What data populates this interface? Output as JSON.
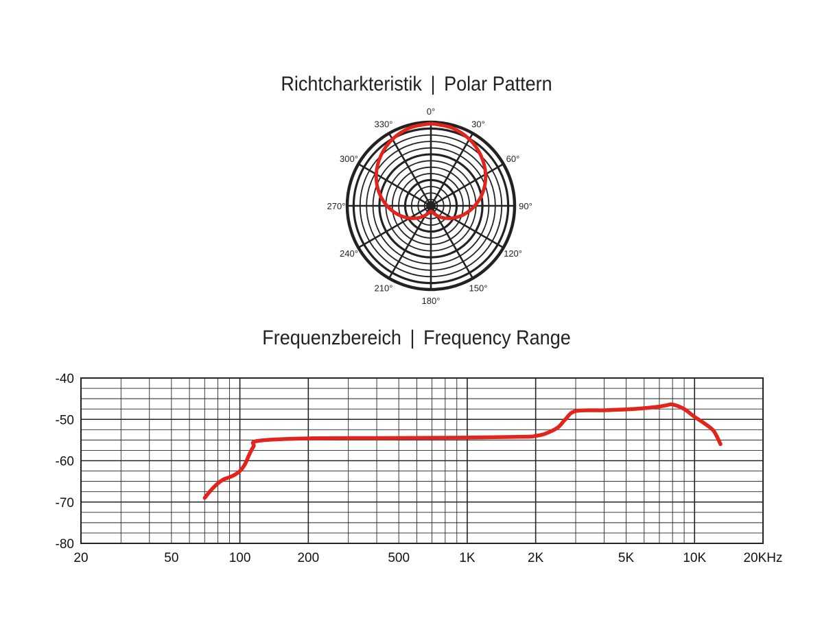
{
  "polar": {
    "title_left": "Richtcharkteristik",
    "title_sep": "|",
    "title_right": "Polar Pattern"
  },
  "frequency": {
    "title_left": "Frequenzbereich",
    "title_sep": "|",
    "title_right": "Frequency Range"
  },
  "colors": {
    "curve": "#e2241c",
    "grid": "#222222"
  },
  "chart_data": [
    {
      "type": "line",
      "subtype": "polar",
      "title": "Richtcharkteristik | Polar Pattern",
      "angle_labels": [
        "0°",
        "30°",
        "60°",
        "90°",
        "120°",
        "150°",
        "180°",
        "210°",
        "240°",
        "270°",
        "300°",
        "330°"
      ],
      "angles_deg": [
        0,
        30,
        60,
        90,
        120,
        150,
        180,
        210,
        240,
        270,
        300,
        330
      ],
      "pattern": "cardioid",
      "series": [
        {
          "theta_deg": [
            0,
            15,
            30,
            45,
            60,
            75,
            90,
            105,
            120,
            135,
            150,
            165,
            180,
            195,
            210,
            225,
            240,
            255,
            270,
            285,
            300,
            315,
            330,
            345,
            360
          ],
          "r": [
            1.0,
            0.98,
            0.93,
            0.85,
            0.75,
            0.63,
            0.5,
            0.37,
            0.25,
            0.15,
            0.07,
            0.02,
            0.0,
            0.02,
            0.07,
            0.15,
            0.25,
            0.37,
            0.5,
            0.63,
            0.75,
            0.85,
            0.93,
            0.98,
            1.0
          ]
        }
      ],
      "grid": true
    },
    {
      "type": "line",
      "title": "Frequenzbereich | Frequency Range",
      "x_scale": "log",
      "xlim": [
        20,
        20000
      ],
      "ylim": [
        -80,
        -40
      ],
      "x_ticks": [
        20,
        50,
        100,
        200,
        500,
        1000,
        2000,
        5000,
        10000,
        20000
      ],
      "x_tick_labels": [
        "20",
        "50",
        "100",
        "200",
        "500",
        "1K",
        "2K",
        "5K",
        "10K",
        "20KHz"
      ],
      "y_ticks": [
        -40,
        -50,
        -60,
        -70,
        -80
      ],
      "y_tick_labels": [
        "-40",
        "-50",
        "-60",
        "-70",
        "-80"
      ],
      "grid": true,
      "series": [
        {
          "x": [
            70,
            75,
            80,
            85,
            90,
            95,
            100,
            105,
            110,
            115,
            120,
            200,
            500,
            1000,
            1800,
            2000,
            2200,
            2500,
            2700,
            3000,
            4000,
            5000,
            6000,
            7000,
            7500,
            8000,
            9000,
            10000,
            11000,
            12000,
            12500,
            13000
          ],
          "y": [
            -69,
            -67,
            -65.5,
            -64.5,
            -64,
            -63.4,
            -62.5,
            -61,
            -58.5,
            -56.5,
            -55.2,
            -54.6,
            -54.5,
            -54.4,
            -54.2,
            -54,
            -53.5,
            -52,
            -50,
            -48,
            -47.8,
            -47.6,
            -47.3,
            -46.9,
            -46.6,
            -46.4,
            -47.5,
            -49.4,
            -50.9,
            -52.5,
            -54,
            -56
          ]
        }
      ]
    }
  ]
}
